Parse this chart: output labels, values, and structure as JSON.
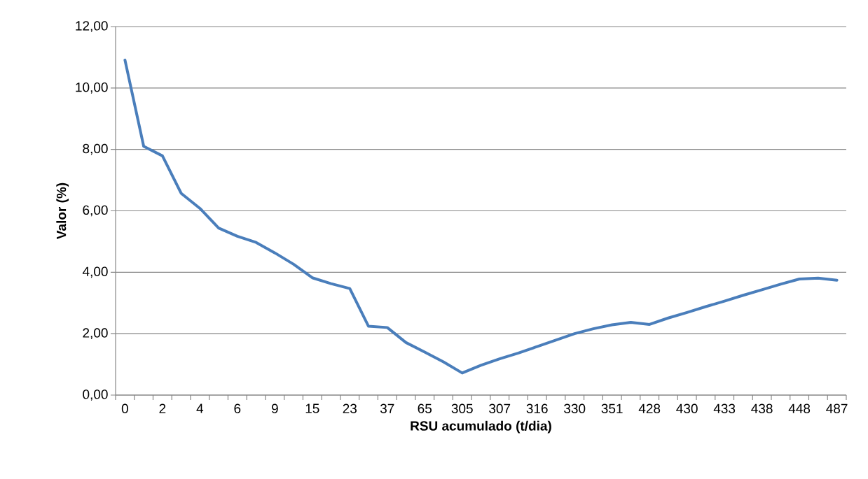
{
  "chart_data": {
    "type": "line",
    "xlabel": "RSU acumulado (t/dia)",
    "ylabel": "Valor (%)",
    "categories": [
      "0",
      null,
      "2",
      null,
      "4",
      null,
      "6",
      null,
      "9",
      null,
      "15",
      null,
      "23",
      null,
      "37",
      null,
      "65",
      null,
      "305",
      null,
      "307",
      null,
      "316",
      null,
      "330",
      null,
      "351",
      null,
      "428",
      null,
      "430",
      null,
      "433",
      null,
      "438",
      null,
      "448",
      null,
      "487"
    ],
    "series": [
      {
        "color": "#4a7ebb",
        "values": [
          10.91,
          8.1,
          7.79,
          6.57,
          6.08,
          5.44,
          5.17,
          4.97,
          4.63,
          4.26,
          3.82,
          3.63,
          3.47,
          2.24,
          2.2,
          1.71,
          1.4,
          1.08,
          0.72,
          0.97,
          1.18,
          1.37,
          1.58,
          1.79,
          2.0,
          2.16,
          2.29,
          2.37,
          2.3,
          2.51,
          2.69,
          2.88,
          3.06,
          3.25,
          3.43,
          3.61,
          3.78,
          3.81,
          3.74
        ]
      }
    ],
    "ylim": [
      0,
      12
    ],
    "yticks": [
      {
        "value": 0,
        "label": "0,00"
      },
      {
        "value": 2,
        "label": "2,00"
      },
      {
        "value": 4,
        "label": "4,00"
      },
      {
        "value": 6,
        "label": "6,00"
      },
      {
        "value": 8,
        "label": "8,00"
      },
      {
        "value": 10,
        "label": "10,00"
      },
      {
        "value": 12,
        "label": "12,00"
      }
    ],
    "grid": "y",
    "legend": false,
    "marker": "none",
    "line_style": "solid"
  }
}
